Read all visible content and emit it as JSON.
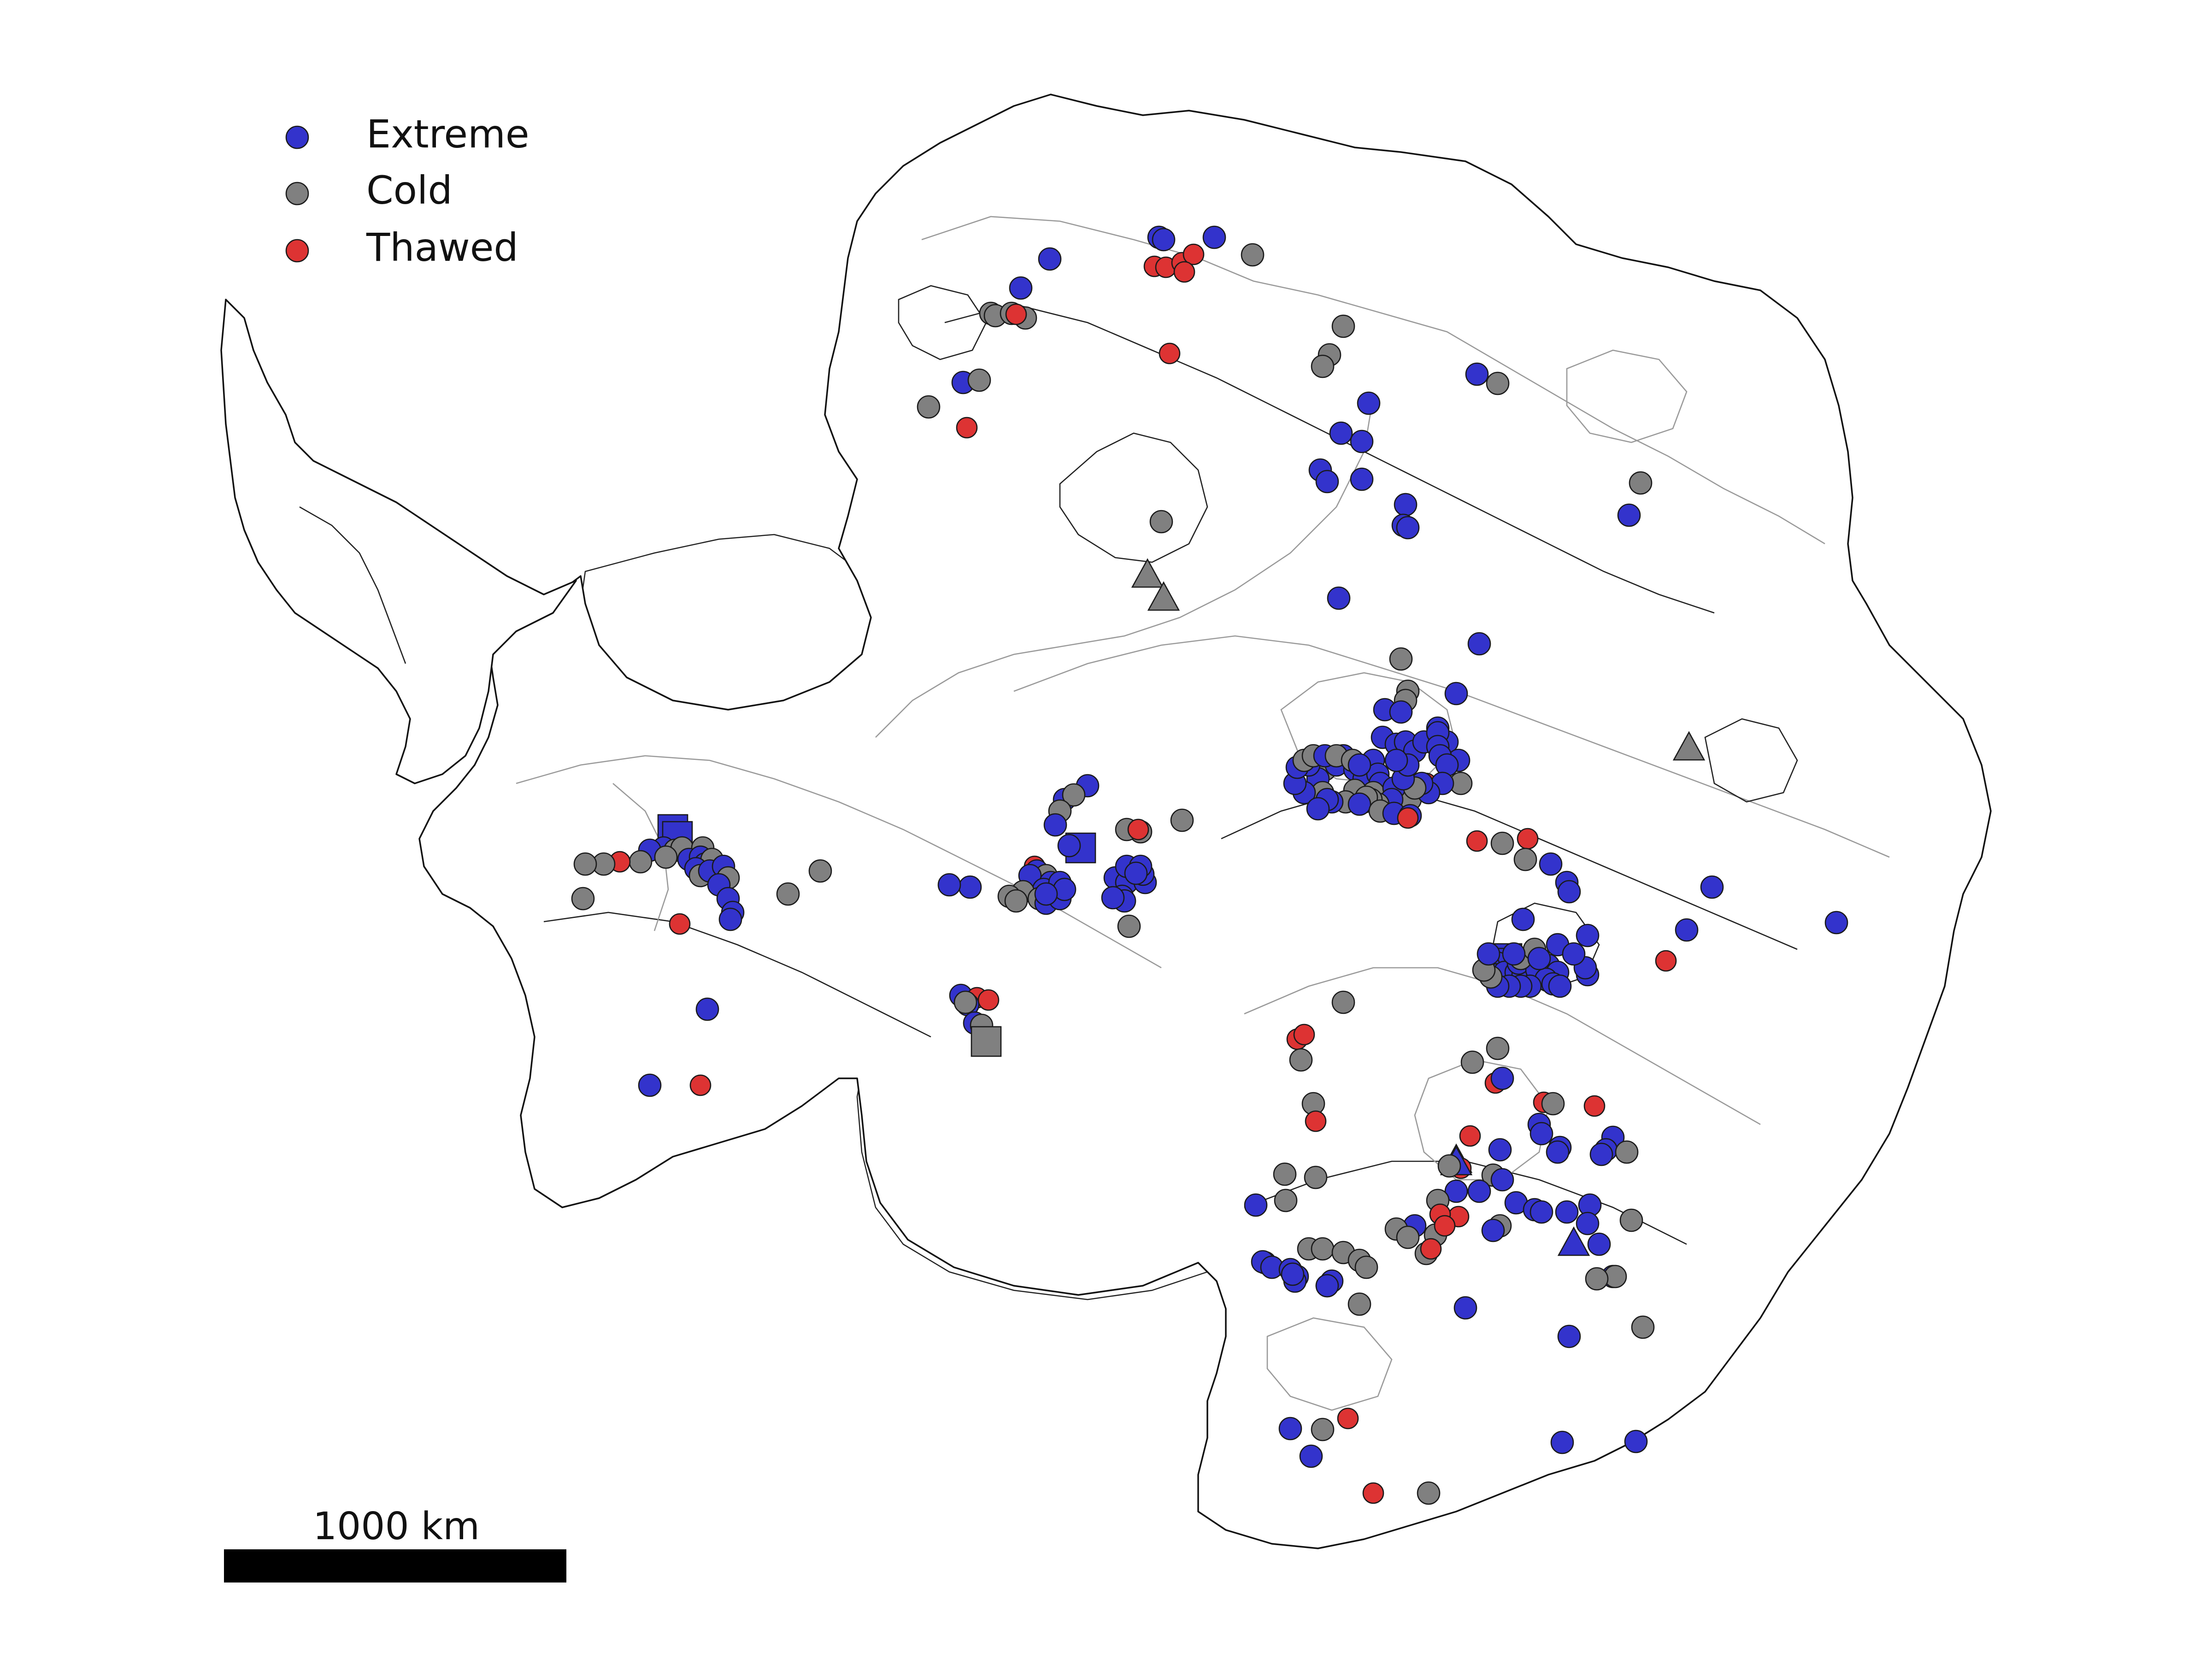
{
  "legend": {
    "items": [
      {
        "key": "extreme",
        "label": "Extreme",
        "color": "#3333cc"
      },
      {
        "key": "cold",
        "label": "Cold",
        "color": "#808080"
      },
      {
        "key": "thawed",
        "label": "Thawed",
        "color": "#dd3333"
      }
    ]
  },
  "scale_bar": {
    "label": "1000 km"
  },
  "marker_shapes": [
    "circle",
    "square",
    "triangle"
  ],
  "colors": {
    "extreme": "#3333cc",
    "cold": "#808080",
    "thawed": "#dd3333",
    "coast": "#111111",
    "contour_light": "#9a9a9a"
  }
}
